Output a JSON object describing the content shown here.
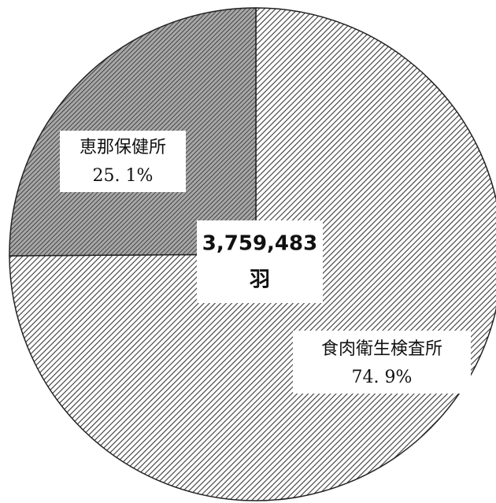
{
  "chart_data": {
    "type": "pie",
    "categories": [
      "食肉衛生検査所",
      "恵那保健所"
    ],
    "values": [
      74.9,
      25.1
    ],
    "value_labels": [
      "74. 9%",
      "25. 1%"
    ],
    "colors": [
      "#3a3a3a",
      "#2a2a2a"
    ],
    "center_label": "3,759,483",
    "center_unit": "羽"
  }
}
